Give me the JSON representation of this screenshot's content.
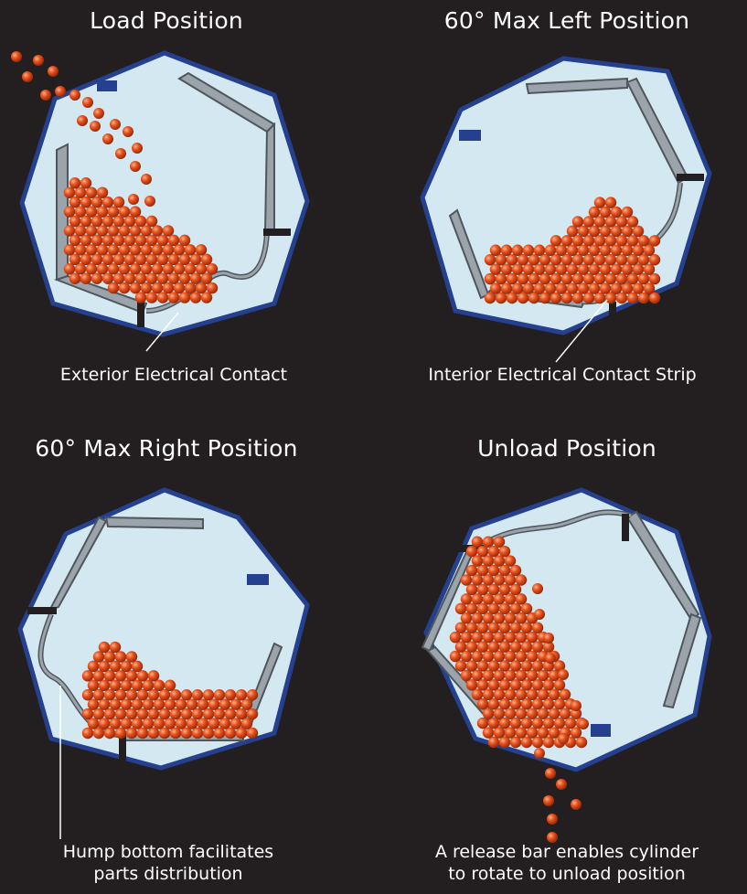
{
  "panels": [
    {
      "title": "Load Position",
      "caption_lines": [
        "Exterior  Electrical Contact"
      ]
    },
    {
      "title": "60° Max Left Position",
      "caption_lines": [
        "Interior  Electrical  Contact Strip"
      ]
    },
    {
      "title": "60° Max Right Position",
      "caption_lines": [
        "Hump bottom facilitates",
        "parts distribution"
      ]
    },
    {
      "title": "Unload Position",
      "caption_lines": [
        "A release bar enables cylinder",
        "to rotate to unload position"
      ]
    }
  ],
  "colors": {
    "background": "#231f20",
    "drum_fill": "#d4e8f1",
    "drum_rim": "#25408f",
    "frame": "#9ba3ab",
    "frame_dark": "#4f565c",
    "ball": "#e8531e",
    "text": "#ffffff"
  }
}
